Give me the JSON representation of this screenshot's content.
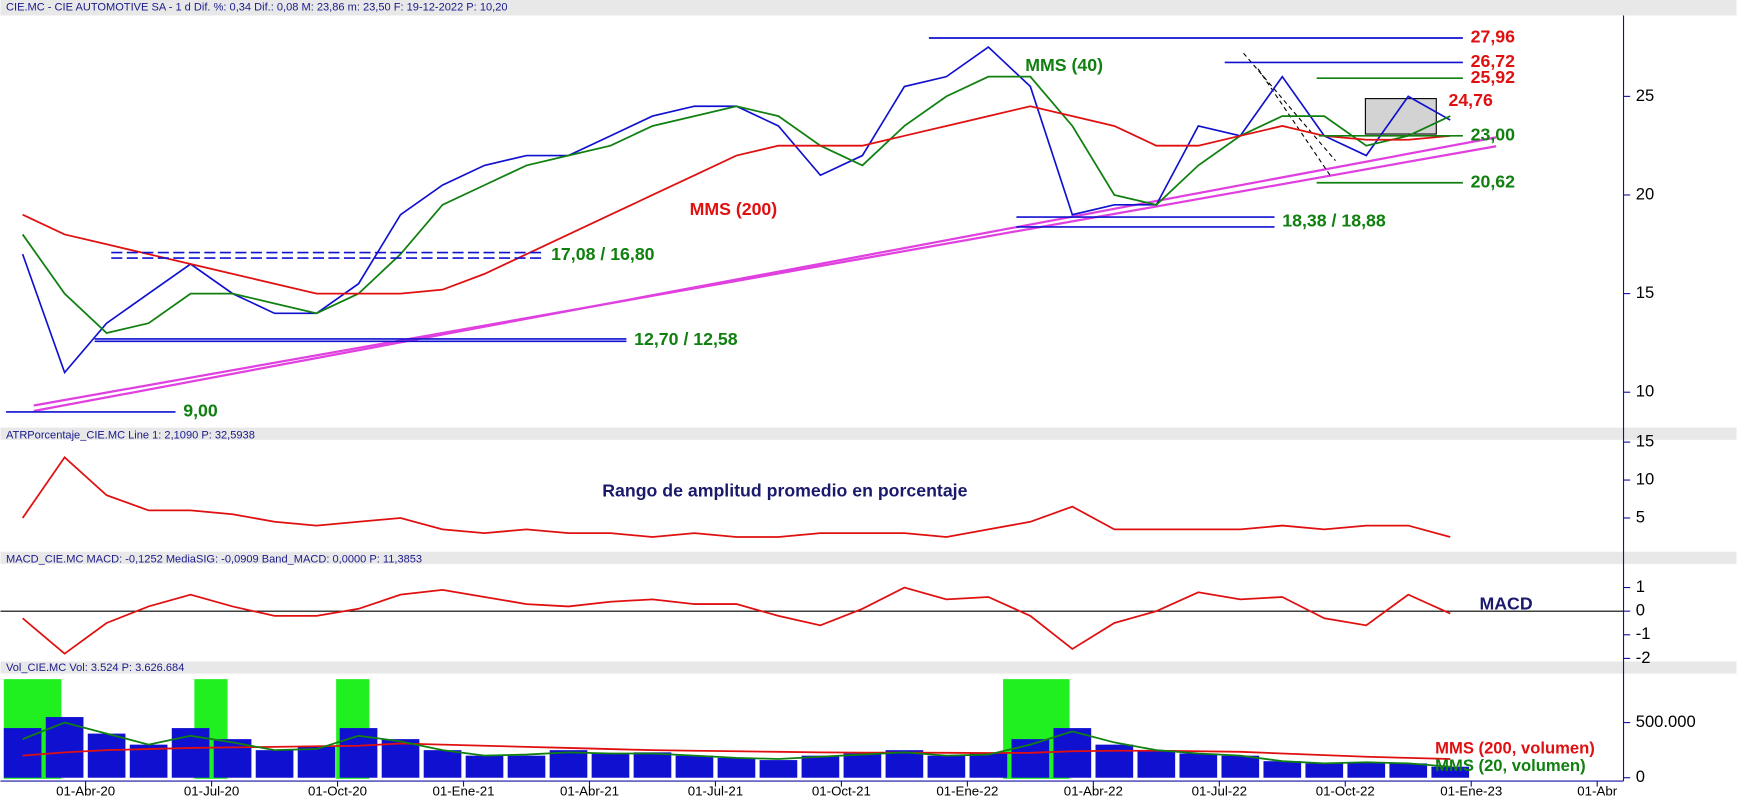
{
  "chart_data": [
    {
      "type": "line",
      "header": "CIE.MC - CIE AUTOMOTIVE SA - 1 d Dif. %: 0,34 Dif.: 0,08 M: 23,86 m: 23,50 F: 19-12-2022 P: 10,20",
      "color": "#1010d0",
      "values": [
        17,
        11,
        13.5,
        15,
        16.5,
        15,
        14,
        14,
        15.5,
        19,
        20.5,
        21.5,
        22,
        22,
        23,
        24,
        24.5,
        24.5,
        23.5,
        21,
        22,
        25.5,
        26,
        27.5,
        25.5,
        19,
        19.5,
        19.5,
        23.5,
        23,
        26,
        23,
        22,
        25,
        23.8
      ],
      "series": [
        {
          "name": "MMS (40)",
          "color": "#108010",
          "values": [
            18,
            15,
            13,
            13.5,
            15,
            15,
            14.5,
            14,
            15,
            17,
            19.5,
            20.5,
            21.5,
            22,
            22.5,
            23.5,
            24,
            24.5,
            24,
            22.5,
            21.5,
            23.5,
            25,
            26,
            26,
            23.5,
            20,
            19.5,
            21.5,
            23,
            24,
            24,
            22.5,
            23,
            24
          ]
        },
        {
          "name": "MMS (200)",
          "color": "#e01010",
          "values": [
            19,
            18,
            17.5,
            17,
            16.5,
            16,
            15.5,
            15,
            15,
            15,
            15.2,
            16,
            17,
            18,
            19,
            20,
            21,
            22,
            22.5,
            22.5,
            22.5,
            23,
            23.5,
            24,
            24.5,
            24,
            23.5,
            22.5,
            22.5,
            23,
            23.5,
            23,
            22.8,
            22.8,
            23
          ]
        }
      ],
      "levels": [
        {
          "label": "27,96",
          "values": [
            27.96
          ],
          "color": "#e01010",
          "line_color": "#1010d0"
        },
        {
          "label": "26,72",
          "values": [
            26.72
          ],
          "color": "#e01010",
          "line_color": "#1010d0"
        },
        {
          "label": "25,92",
          "values": [
            25.92
          ],
          "color": "#e01010",
          "line_color": "#108010"
        },
        {
          "label": "24,76",
          "values": [
            24.76
          ],
          "color": "#e01010",
          "line_color": "#808080"
        },
        {
          "label": "23,00",
          "values": [
            23.0
          ],
          "color": "#108010",
          "line_color": "#108010"
        },
        {
          "label": "20,62",
          "values": [
            20.62
          ],
          "color": "#108010",
          "line_color": "#108010"
        },
        {
          "label": "18,38 / 18,88",
          "values": [
            18.38,
            18.88
          ],
          "color": "#108010",
          "line_color": "#1010d0"
        },
        {
          "label": "17,08 / 16,80",
          "values": [
            17.08,
            16.8
          ],
          "color": "#108010",
          "line_color": "#1010d0"
        },
        {
          "label": "12,70 / 12,58",
          "values": [
            12.7,
            12.58
          ],
          "color": "#108010",
          "line_color": "#1010d0"
        },
        {
          "label": "9,00",
          "values": [
            9.0
          ],
          "color": "#108010",
          "line_color": "#1010d0"
        }
      ],
      "ylim": [
        8.26,
        29.1
      ],
      "yticks": [
        10,
        15,
        20,
        25
      ]
    },
    {
      "type": "line",
      "header": "ATRPorcentaje_CIE.MC Line 1: 2,1090 P: 32,5938",
      "annotation": "Rango de amplitud promedio en porcentaje",
      "color": "#e01010",
      "values": [
        5,
        13,
        8,
        6,
        6,
        5.5,
        4.5,
        4,
        4.5,
        5,
        3.5,
        3,
        3.5,
        3,
        3,
        2.5,
        3,
        2.5,
        2.5,
        3,
        3,
        3,
        2.5,
        3.5,
        4.5,
        6.5,
        3.5,
        3.5,
        3.5,
        3.5,
        4,
        3.5,
        4,
        4,
        2.5
      ],
      "ylim": [
        0.7,
        15.3
      ],
      "yticks": [
        5,
        10,
        15
      ]
    },
    {
      "type": "line",
      "header": "MACD_CIE.MC MACD: -0,1252 MediaSIG: -0,0909 Band_MACD: 0,0000 P: 11,3853",
      "annotation": "MACD",
      "color": "#e01010",
      "values": [
        -0.3,
        -1.8,
        -0.5,
        0.2,
        0.7,
        0.2,
        -0.2,
        -0.2,
        0.1,
        0.7,
        0.9,
        0.6,
        0.3,
        0.2,
        0.4,
        0.5,
        0.3,
        0.3,
        -0.2,
        -0.6,
        0.1,
        1.0,
        0.5,
        0.6,
        -0.2,
        -1.6,
        -0.5,
        0.0,
        0.8,
        0.5,
        0.6,
        -0.3,
        -0.6,
        0.7,
        -0.1
      ],
      "ylim": [
        -2.08,
        2.0
      ],
      "yticks": [
        -2,
        -1,
        0,
        1
      ]
    },
    {
      "type": "bar",
      "header": "Vol_CIE.MC Vol: 3.524 P: 3.626.684",
      "color": "#1010d0",
      "values": [
        450000,
        550000,
        400000,
        300000,
        450000,
        350000,
        250000,
        280000,
        450000,
        350000,
        250000,
        200000,
        200000,
        250000,
        220000,
        230000,
        200000,
        180000,
        160000,
        200000,
        220000,
        250000,
        200000,
        220000,
        350000,
        450000,
        300000,
        250000,
        220000,
        200000,
        150000,
        130000,
        140000,
        130000,
        100000
      ],
      "series": [
        {
          "name": "MMS (200, volumen)",
          "color": "#e01010",
          "values": [
            200000,
            230000,
            250000,
            260000,
            270000,
            275000,
            280000,
            285000,
            290000,
            310000,
            300000,
            290000,
            280000,
            270000,
            260000,
            250000,
            245000,
            240000,
            235000,
            230000,
            228000,
            228000,
            226000,
            224000,
            226000,
            240000,
            245000,
            245000,
            240000,
            235000,
            220000,
            205000,
            190000,
            180000,
            170000
          ]
        },
        {
          "name": "MMS (20, volumen)",
          "color": "#108010",
          "values": [
            350000,
            500000,
            400000,
            300000,
            380000,
            320000,
            250000,
            260000,
            380000,
            330000,
            250000,
            200000,
            210000,
            230000,
            220000,
            220000,
            200000,
            180000,
            170000,
            190000,
            210000,
            230000,
            200000,
            210000,
            300000,
            420000,
            320000,
            250000,
            220000,
            200000,
            150000,
            130000,
            140000,
            130000,
            100000
          ]
        }
      ],
      "ylim": [
        0,
        944000
      ],
      "yticks": [
        0,
        {
          "value": 500000,
          "label": "500.000"
        }
      ],
      "xtick_labels": [
        "01-Abr-20",
        "01-Jul-20",
        "01-Oct-20",
        "01-Ene-21",
        "01-Abr-21",
        "01-Jul-21",
        "01-Oct-21",
        "01-Ene-22",
        "01-Abr-22",
        "01-Jul-22",
        "01-Oct-22",
        "01-Ene-23",
        "01-Abr"
      ]
    }
  ]
}
